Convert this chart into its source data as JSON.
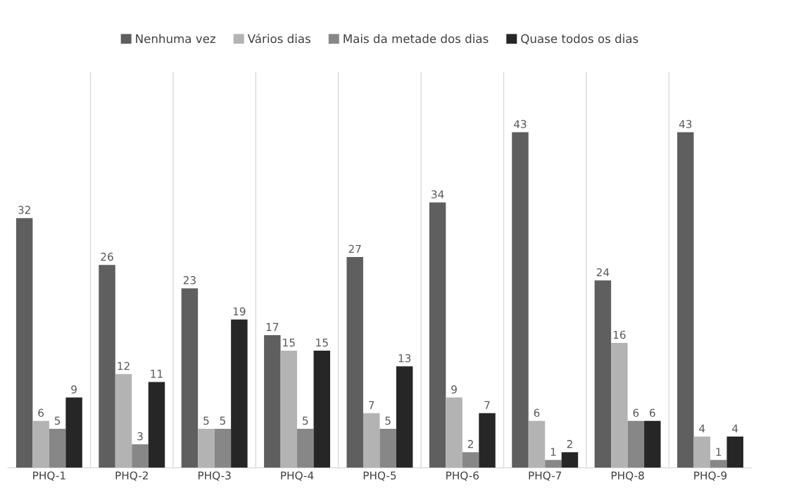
{
  "chart_data": {
    "type": "bar",
    "categories": [
      "PHQ-1",
      "PHQ-2",
      "PHQ-3",
      "PHQ-4",
      "PHQ-5",
      "PHQ-6",
      "PHQ-7",
      "PHQ-8",
      "PHQ-9"
    ],
    "series": [
      {
        "name": "Nenhuma vez",
        "color": "#5f5f5f",
        "values": [
          32,
          26,
          23,
          17,
          27,
          34,
          43,
          24,
          43
        ]
      },
      {
        "name": "Vários dias",
        "color": "#b3b3b3",
        "values": [
          6,
          12,
          5,
          15,
          7,
          9,
          6,
          16,
          4
        ]
      },
      {
        "name": "Mais da metade dos dias",
        "color": "#878787",
        "values": [
          5,
          3,
          5,
          5,
          5,
          2,
          1,
          6,
          1
        ]
      },
      {
        "name": "Quase todos os dias",
        "color": "#262626",
        "values": [
          9,
          11,
          19,
          15,
          13,
          7,
          2,
          6,
          4
        ]
      }
    ],
    "data_labels": true,
    "grid": "x",
    "legend": "top",
    "tick_labels": "x"
  }
}
